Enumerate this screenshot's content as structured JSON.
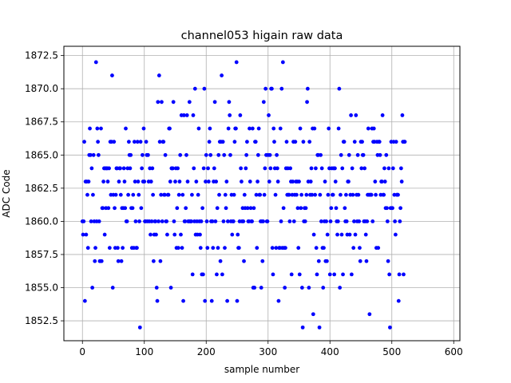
{
  "chart_data": {
    "type": "scatter",
    "title": "channel053 higain raw data",
    "xlabel": "sample number",
    "ylabel": "ADC Code",
    "xlim": [
      -30,
      610
    ],
    "ylim": [
      1851.0,
      1873.2
    ],
    "xticks": [
      0,
      100,
      200,
      300,
      400,
      500,
      600
    ],
    "yticks": [
      1852.5,
      1855.0,
      1857.5,
      1860.0,
      1862.5,
      1865.0,
      1867.5,
      1870.0,
      1872.5
    ],
    "xtick_labels": [
      "0",
      "100",
      "200",
      "300",
      "400",
      "500",
      "600"
    ],
    "ytick_labels": [
      "1852.5",
      "1855.0",
      "1857.5",
      "1860.0",
      "1862.5",
      "1865.0",
      "1867.5",
      "1870.0",
      "1872.5"
    ],
    "grid": true,
    "marker_color": "#0000ff",
    "x_start": 0,
    "y": [
      1860,
      1859,
      1860,
      1866,
      1854,
      1863,
      1859,
      1863,
      1862,
      1858,
      1863,
      1865,
      1867,
      1865,
      1860,
      1864,
      1855,
      1862,
      1865,
      1860,
      1857,
      1858,
      1872,
      1860,
      1867,
      1866,
      1865,
      1860,
      1857,
      1857,
      1867,
      1857,
      1861,
      1861,
      1863,
      1864,
      1859,
      1864,
      1861,
      1864,
      1864,
      1863,
      1861,
      1864,
      1858,
      1866,
      1862,
      1866,
      1871,
      1855,
      1862,
      1866,
      1861,
      1858,
      1862,
      1864,
      1864,
      1858,
      1857,
      1863,
      1864,
      1864,
      1862,
      1857,
      1861,
      1858,
      1861,
      1864,
      1863,
      1861,
      1867,
      1860,
      1860,
      1864,
      1862,
      1866,
      1865,
      1864,
      1865,
      1861,
      1858,
      1861,
      1862,
      1858,
      1866,
      1863,
      1860,
      1858,
      1858,
      1866,
      1863,
      1862,
      1860,
      1852,
      1866,
      1861,
      1864,
      1865,
      1863,
      1867,
      1863,
      1860,
      1860,
      1866,
      1865,
      1860,
      1865,
      1863,
      1860,
      1864,
      1859,
      1863,
      1860,
      1864,
      1862,
      1857,
      1859,
      1860,
      1860,
      1859,
      1855,
      1854,
      1869,
      1860,
      1871,
      1866,
      1857,
      1862,
      1869,
      1860,
      1866,
      1866,
      1862,
      1862,
      1865,
      1860,
      1860,
      1859,
      1862,
      1862,
      1867,
      1867,
      1863,
      1855,
      1864,
      1864,
      1864,
      1869,
      1860,
      1859,
      1863,
      1864,
      1858,
      1861,
      1864,
      1858,
      1862,
      1863,
      1865,
      1859,
      1868,
      1858,
      1862,
      1854,
      1868,
      1860,
      1860,
      1861,
      1865,
      1868,
      1863,
      1860,
      1860,
      1869,
      1860,
      1860,
      1860,
      1862,
      1856,
      1868,
      1864,
      1860,
      1870,
      1859,
      1863,
      1860,
      1859,
      1862,
      1867,
      1860,
      1859,
      1858,
      1860,
      1856,
      1861,
      1856,
      1864,
      1870,
      1854,
      1863,
      1865,
      1860,
      1858,
      1864,
      1863,
      1866,
      1867,
      1865,
      1860,
      1854,
      1860,
      1858,
      1863,
      1864,
      1869,
      1860,
      1863,
      1856,
      1861,
      1858,
      1865,
      1862,
      1866,
      1857,
      1866,
      1871,
      1856,
      1866,
      1860,
      1865,
      1858,
      1862,
      1861,
      1863,
      1854,
      1860,
      1867,
      1869,
      1868,
      1865,
      1860,
      1862,
      1859,
      1860,
      1860,
      1862,
      1866,
      1867,
      1867,
      1872,
      1854,
      1859,
      1858,
      1858,
      1860,
      1868,
      1864,
      1863,
      1860,
      1861,
      1860,
      1857,
      1862,
      1861,
      1864,
      1865,
      1866,
      1861,
      1860,
      1860,
      1867,
      1863,
      1861,
      1860,
      1860,
      1867,
      1855,
      1861,
      1855,
      1866,
      1866,
      1862,
      1858,
      1863,
      1865,
      1867,
      1862,
      1862,
      1860,
      1855,
      1860,
      1857,
      1860,
      1869,
      1862,
      1864,
      1870,
      1865,
      1860,
      1860,
      1865,
      1868,
      1863,
      1865,
      1864,
      1870,
      1870,
      1858,
      1856,
      1867,
      1866,
      1864,
      1862,
      1858,
      1865,
      1864,
      1863,
      1854,
      1858,
      1858,
      1867,
      1860,
      1870,
      1858,
      1872,
      1861,
      1858,
      1855,
      1858,
      1864,
      1866,
      1862,
      1864,
      1862,
      1862,
      1860,
      1864,
      1863,
      1856,
      1862,
      1863,
      1866,
      1860,
      1862,
      1866,
      1863,
      1862,
      1863,
      1861,
      1858,
      1863,
      1856,
      1867,
      1861,
      1862,
      1855,
      1852,
      1866,
      1860,
      1861,
      1860,
      1861,
      1862,
      1869,
      1870,
      1863,
      1855,
      1866,
      1862,
      1863,
      1864,
      1862,
      1867,
      1853,
      1859,
      1867,
      1862,
      1864,
      1858,
      1856,
      1865,
      1865,
      1857,
      1852,
      1862,
      1865,
      1860,
      1864,
      1858,
      1855,
      1858,
      1860,
      1863,
      1857,
      1860,
      1857,
      1859,
      1862,
      1867,
      1864,
      1856,
      1860,
      1861,
      1864,
      1862,
      1862,
      1864,
      1856,
      1864,
      1863,
      1861,
      1860,
      1859,
      1860,
      1867,
      1870,
      1855,
      1862,
      1865,
      1859,
      1864,
      1856,
      1866,
      1866,
      1861,
      1860,
      1862,
      1860,
      1859,
      1863,
      1863,
      1865,
      1859,
      1862,
      1868,
      1856,
      1864,
      1862,
      1858,
      1860,
      1866,
      1859,
      1868,
      1862,
      1860,
      1865,
      1862,
      1860,
      1858,
      1857,
      1866,
      1864,
      1866,
      1865,
      1865,
      1860,
      1864,
      1860,
      1859,
      1857,
      1860,
      1862,
      1867,
      1862,
      1853,
      1862,
      1862,
      1862,
      1867,
      1860,
      1866,
      1867,
      1866,
      1863,
      1862,
      1858,
      1866,
      1865,
      1858,
      1866,
      1866,
      1865,
      1862,
      1863,
      1863,
      1868,
      1862,
      1862,
      1864,
      1863,
      1861,
      1865,
      1861,
      1860,
      1857,
      1864,
      1856,
      1852,
      1861,
      1866,
      1861,
      1861,
      1864,
      1866,
      1862,
      1860,
      1859,
      1866,
      1862,
      1862,
      1862,
      1854,
      1856,
      1860,
      1861,
      1864,
      1863,
      1868,
      1866,
      1856,
      1866,
      1866
    ]
  }
}
